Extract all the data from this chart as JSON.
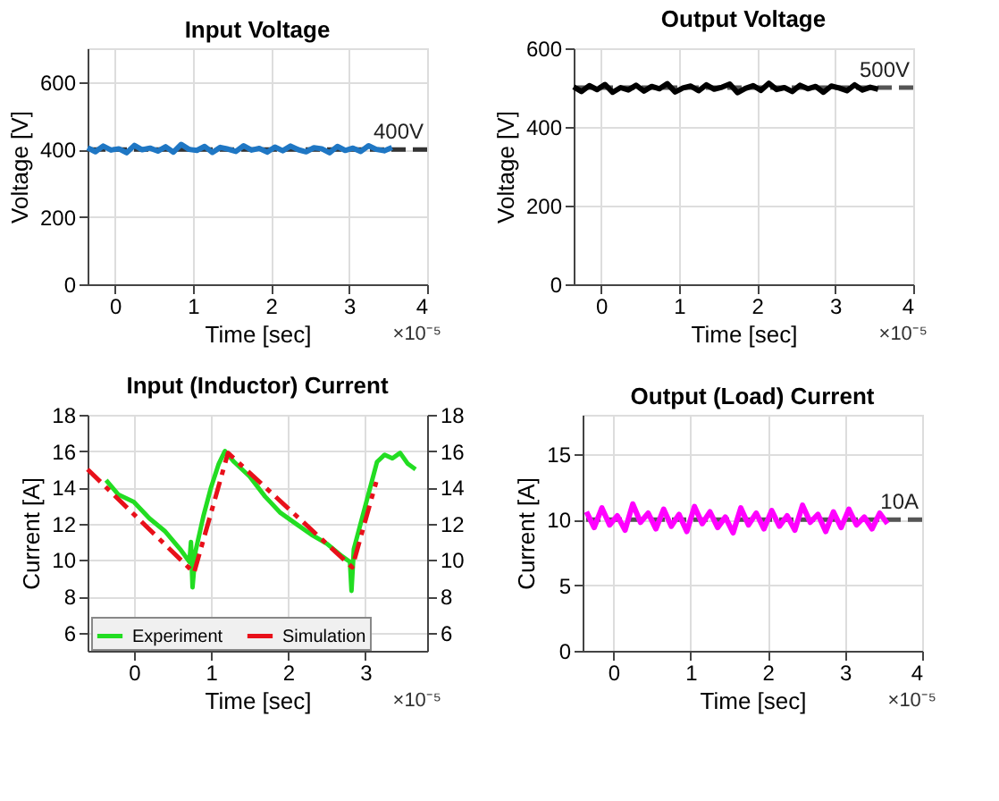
{
  "chart_data": [
    {
      "type": "line",
      "title": "Input Voltage",
      "xlabel": "Time [sec]",
      "ylabel": "Voltage [V]",
      "xlim": [
        -0.35,
        4
      ],
      "xticks": [
        0,
        1,
        2,
        3,
        4
      ],
      "ylim": [
        0,
        700
      ],
      "yticks": [
        0,
        200,
        400,
        600
      ],
      "grid": true,
      "annotations": [
        "×10⁻⁵"
      ],
      "ref_lines": [
        {
          "axis": "y",
          "value": 400,
          "label": "400V",
          "color": "#333333",
          "line_style": "dashed"
        }
      ],
      "series": [
        {
          "color": "#1f77c4",
          "line_style": "solid",
          "x": [
            -0.35,
            -0.25,
            -0.15,
            -0.05,
            0.05,
            0.15,
            0.25,
            0.35,
            0.45,
            0.55,
            0.65,
            0.75,
            0.85,
            0.95,
            1.05,
            1.15,
            1.25,
            1.35,
            1.45,
            1.55,
            1.65,
            1.75,
            1.85,
            1.95,
            2.05,
            2.15,
            2.25,
            2.35,
            2.45,
            2.55,
            2.65,
            2.75,
            2.85,
            2.95,
            3.05,
            3.15,
            3.25,
            3.35,
            3.45,
            3.55
          ],
          "values": [
            405,
            393,
            410,
            398,
            402,
            390,
            412,
            399,
            404,
            395,
            408,
            392,
            415,
            400,
            397,
            409,
            391,
            406,
            401,
            394,
            411,
            398,
            403,
            392,
            407,
            396,
            410,
            399,
            393,
            405,
            402,
            390,
            409,
            397,
            404,
            394,
            411,
            400,
            396,
            406
          ]
        }
      ]
    },
    {
      "type": "line",
      "title": "Output Voltage",
      "xlabel": "Time [sec]",
      "ylabel": "Voltage [V]",
      "xlim": [
        -0.35,
        4
      ],
      "xticks": [
        0,
        1,
        2,
        3,
        4
      ],
      "ylim": [
        0,
        600
      ],
      "yticks": [
        0,
        200,
        400,
        600
      ],
      "grid": true,
      "annotations": [
        "×10⁻⁵"
      ],
      "ref_lines": [
        {
          "axis": "y",
          "value": 500,
          "label": "500V",
          "color": "#555555",
          "line_style": "dashed"
        }
      ],
      "series": [
        {
          "color": "#000000",
          "line_style": "solid",
          "x": [
            -0.35,
            -0.25,
            -0.15,
            -0.05,
            0.05,
            0.15,
            0.25,
            0.35,
            0.45,
            0.55,
            0.65,
            0.75,
            0.85,
            0.95,
            1.05,
            1.15,
            1.25,
            1.35,
            1.45,
            1.55,
            1.65,
            1.75,
            1.85,
            1.95,
            2.05,
            2.15,
            2.25,
            2.35,
            2.45,
            2.55,
            2.65,
            2.75,
            2.85,
            2.95,
            3.05,
            3.15,
            3.25,
            3.35,
            3.45,
            3.55
          ],
          "values": [
            502,
            490,
            505,
            495,
            508,
            488,
            500,
            494,
            506,
            491,
            503,
            497,
            510,
            489,
            499,
            504,
            492,
            507,
            496,
            501,
            509,
            487,
            498,
            505,
            493,
            511,
            495,
            500,
            490,
            506,
            497,
            503,
            488,
            504,
            499,
            492,
            507,
            494,
            501,
            496
          ]
        }
      ]
    },
    {
      "type": "line",
      "title": "Input (Inductor) Current",
      "xlabel": "Time [sec]",
      "ylabel": "Current [A]",
      "xlim": [
        -0.6,
        3.8
      ],
      "xticks": [
        0,
        1,
        2,
        3
      ],
      "ylim": [
        5,
        18
      ],
      "yticks": [
        6,
        8,
        10,
        12,
        14,
        16,
        18
      ],
      "y2lim": [
        5,
        18
      ],
      "y2ticks": [
        6,
        8,
        10,
        12,
        14,
        16,
        18
      ],
      "grid": true,
      "legend": "bottom",
      "annotations": [
        "×10⁻⁵"
      ],
      "series": [
        {
          "name": "Experiment",
          "color": "#22dd22",
          "line_style": "solid",
          "x": [
            -0.36,
            -0.2,
            0,
            0.2,
            0.4,
            0.6,
            0.72,
            0.74,
            0.76,
            0.8,
            0.9,
            1.0,
            1.1,
            1.18,
            1.3,
            1.5,
            1.7,
            1.9,
            2.1,
            2.3,
            2.5,
            2.7,
            2.8,
            2.82,
            2.85,
            2.95,
            3.05,
            3.15,
            3.25,
            3.35,
            3.45,
            3.55,
            3.65
          ],
          "values": [
            14.4,
            13.6,
            13.2,
            12.3,
            11.6,
            10.6,
            9.9,
            11.0,
            8.5,
            10.5,
            12.4,
            14.0,
            15.3,
            16.0,
            15.4,
            14.6,
            13.5,
            12.6,
            12.0,
            11.4,
            10.9,
            10.2,
            9.9,
            8.3,
            10.6,
            12.2,
            13.8,
            15.4,
            15.8,
            15.6,
            15.9,
            15.3,
            15.0
          ]
        },
        {
          "name": "Simulation",
          "color": "#e8101a",
          "line_style": "dashed",
          "x": [
            -0.6,
            0.78,
            1.22,
            2.83,
            3.14
          ],
          "values": [
            15,
            9.3,
            15.9,
            9.6,
            14.3
          ]
        }
      ]
    },
    {
      "type": "line",
      "title": "Output (Load) Current",
      "xlabel": "Time [sec]",
      "ylabel": "Current [A]",
      "xlim": [
        -0.4,
        4
      ],
      "xticks": [
        0,
        1,
        2,
        3,
        4
      ],
      "ylim": [
        0,
        18
      ],
      "yticks": [
        0,
        5,
        10,
        15
      ],
      "grid": true,
      "annotations": [
        "×10⁻⁵"
      ],
      "ref_lines": [
        {
          "axis": "y",
          "value": 10,
          "label": "10A",
          "color": "#555555",
          "line_style": "dashed"
        }
      ],
      "series": [
        {
          "color": "#ff00ff",
          "line_style": "solid",
          "x": [
            -0.35,
            -0.25,
            -0.15,
            -0.05,
            0.05,
            0.15,
            0.25,
            0.35,
            0.45,
            0.55,
            0.65,
            0.75,
            0.85,
            0.95,
            1.05,
            1.15,
            1.25,
            1.35,
            1.45,
            1.55,
            1.65,
            1.75,
            1.85,
            1.95,
            2.05,
            2.15,
            2.25,
            2.35,
            2.45,
            2.55,
            2.65,
            2.75,
            2.85,
            2.95,
            3.05,
            3.15,
            3.25,
            3.35,
            3.45,
            3.55
          ],
          "values": [
            10.6,
            9.4,
            10.9,
            9.6,
            10.3,
            9.2,
            11.2,
            9.8,
            10.5,
            9.3,
            10.8,
            9.5,
            10.4,
            9.1,
            11.0,
            9.7,
            10.6,
            9.4,
            10.2,
            9.0,
            10.9,
            9.6,
            10.5,
            9.3,
            10.7,
            9.5,
            10.3,
            9.2,
            11.1,
            9.8,
            10.4,
            9.1,
            10.6,
            9.4,
            10.8,
            9.6,
            10.2,
            9.3,
            10.5,
            9.7
          ]
        }
      ]
    }
  ]
}
